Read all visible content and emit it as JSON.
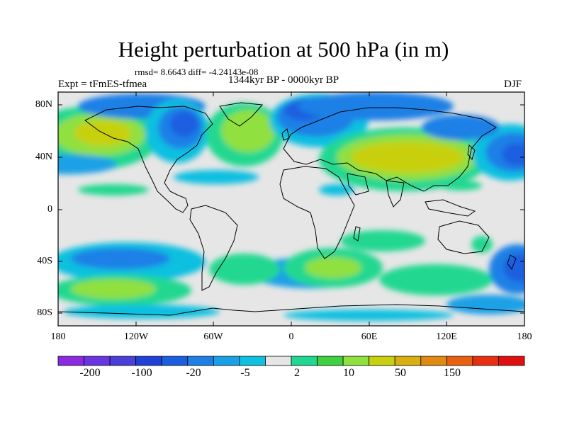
{
  "title": "Height perturbation at 500 hPa (in m)",
  "stats": {
    "rmsd": "rmsd= 8.6643 diff= -4.24143e-08"
  },
  "period": "1344kyr BP - 0000kyr BP",
  "experiment": "Expt = tFmES-tfmea",
  "season": "DJF",
  "map": {
    "lat_labels": [
      "80N",
      "40N",
      "0",
      "40S",
      "80S"
    ],
    "lon_labels": [
      "180",
      "120W",
      "60W",
      "0",
      "60E",
      "120E",
      "180"
    ]
  },
  "colorbar": {
    "labels": [
      "-200",
      "-100",
      "-20",
      "-5",
      "2",
      "10",
      "50",
      "150"
    ],
    "colors": [
      "#8a2be2",
      "#6a35e0",
      "#4a3fd8",
      "#2040d8",
      "#1a5fe0",
      "#1e80e6",
      "#1aa0e6",
      "#10c0e0",
      "#e6e6e6",
      "#20d890",
      "#40d040",
      "#90e040",
      "#c8d010",
      "#d8b010",
      "#e08a10",
      "#e86010",
      "#e83010",
      "#e01010"
    ]
  }
}
